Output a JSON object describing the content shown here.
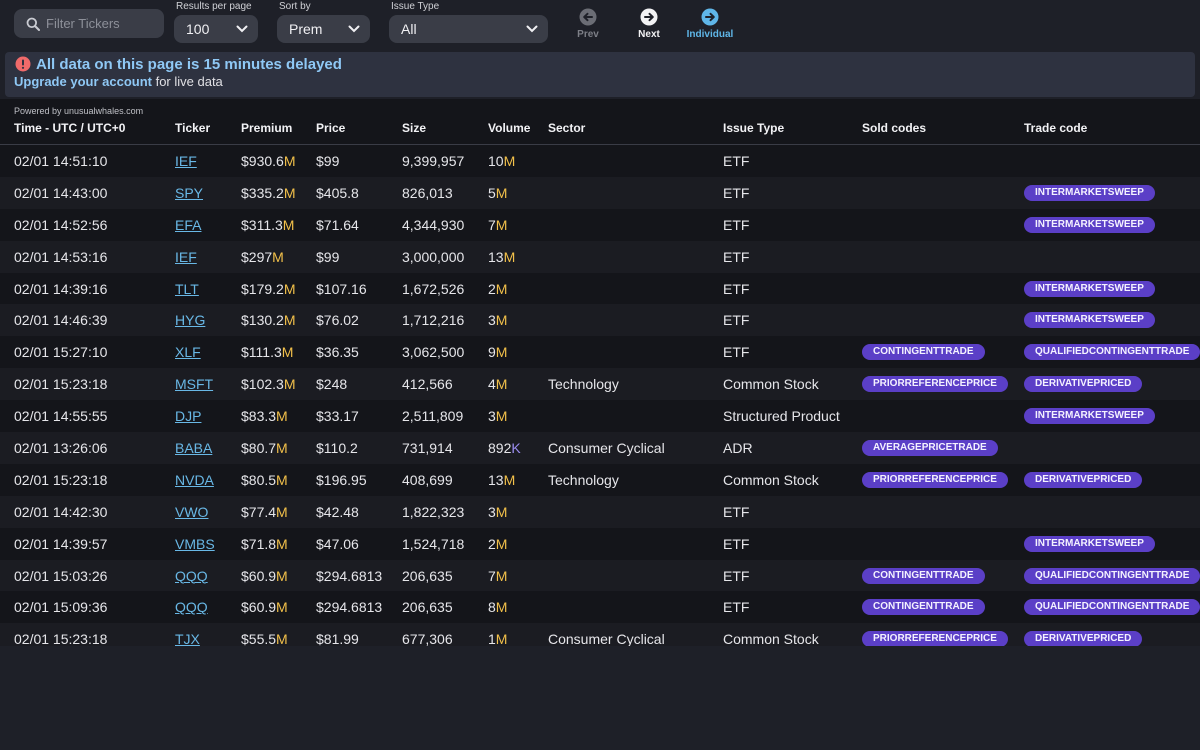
{
  "toolbar": {
    "search_placeholder": "Filter Tickers",
    "results_label": "Results per page",
    "results_value": "100",
    "sort_label": "Sort by",
    "sort_value": "Prem",
    "issue_label": "Issue Type",
    "issue_value": "All",
    "prev_label": "Prev",
    "next_label": "Next",
    "individual_label": "Individual"
  },
  "banner": {
    "message": "All data on this page is 15 minutes delayed",
    "link": "Upgrade your account",
    "suffix": " for live data"
  },
  "table": {
    "powered_by": "Powered by unusualwhales.com",
    "headers": {
      "time": "Time - UTC / UTC+0",
      "ticker": "Ticker",
      "premium": "Premium",
      "price": "Price",
      "size": "Size",
      "volume": "Volume",
      "sector": "Sector",
      "issue": "Issue Type",
      "sold": "Sold codes",
      "trade": "Trade code"
    },
    "rows": [
      {
        "time": "02/01 14:51:10",
        "ticker": "IEF",
        "premium": "$930.6",
        "premium_unit": "M",
        "price": "$99",
        "size": "9,399,957",
        "volume": "10",
        "volume_unit": "M",
        "sector": "",
        "issue": "ETF",
        "sold": "",
        "trade": ""
      },
      {
        "time": "02/01 14:43:00",
        "ticker": "SPY",
        "premium": "$335.2",
        "premium_unit": "M",
        "price": "$405.8",
        "size": "826,013",
        "volume": "5",
        "volume_unit": "M",
        "sector": "",
        "issue": "ETF",
        "sold": "",
        "trade": "INTERMARKETSWEEP"
      },
      {
        "time": "02/01 14:52:56",
        "ticker": "EFA",
        "premium": "$311.3",
        "premium_unit": "M",
        "price": "$71.64",
        "size": "4,344,930",
        "volume": "7",
        "volume_unit": "M",
        "sector": "",
        "issue": "ETF",
        "sold": "",
        "trade": "INTERMARKETSWEEP"
      },
      {
        "time": "02/01 14:53:16",
        "ticker": "IEF",
        "premium": "$297",
        "premium_unit": "M",
        "price": "$99",
        "size": "3,000,000",
        "volume": "13",
        "volume_unit": "M",
        "sector": "",
        "issue": "ETF",
        "sold": "",
        "trade": ""
      },
      {
        "time": "02/01 14:39:16",
        "ticker": "TLT",
        "premium": "$179.2",
        "premium_unit": "M",
        "price": "$107.16",
        "size": "1,672,526",
        "volume": "2",
        "volume_unit": "M",
        "sector": "",
        "issue": "ETF",
        "sold": "",
        "trade": "INTERMARKETSWEEP"
      },
      {
        "time": "02/01 14:46:39",
        "ticker": "HYG",
        "premium": "$130.2",
        "premium_unit": "M",
        "price": "$76.02",
        "size": "1,712,216",
        "volume": "3",
        "volume_unit": "M",
        "sector": "",
        "issue": "ETF",
        "sold": "",
        "trade": "INTERMARKETSWEEP"
      },
      {
        "time": "02/01 15:27:10",
        "ticker": "XLF",
        "premium": "$111.3",
        "premium_unit": "M",
        "price": "$36.35",
        "size": "3,062,500",
        "volume": "9",
        "volume_unit": "M",
        "sector": "",
        "issue": "ETF",
        "sold": "CONTINGENTTRADE",
        "trade": "QUALIFIEDCONTINGENTTRADE"
      },
      {
        "time": "02/01 15:23:18",
        "ticker": "MSFT",
        "premium": "$102.3",
        "premium_unit": "M",
        "price": "$248",
        "size": "412,566",
        "volume": "4",
        "volume_unit": "M",
        "sector": "Technology",
        "issue": "Common Stock",
        "sold": "PRIORREFERENCEPRICE",
        "trade": "DERIVATIVEPRICED"
      },
      {
        "time": "02/01 14:55:55",
        "ticker": "DJP",
        "premium": "$83.3",
        "premium_unit": "M",
        "price": "$33.17",
        "size": "2,511,809",
        "volume": "3",
        "volume_unit": "M",
        "sector": "",
        "issue": "Structured Product",
        "sold": "",
        "trade": "INTERMARKETSWEEP"
      },
      {
        "time": "02/01 13:26:06",
        "ticker": "BABA",
        "premium": "$80.7",
        "premium_unit": "M",
        "price": "$110.2",
        "size": "731,914",
        "volume": "892",
        "volume_unit": "K",
        "sector": "Consumer Cyclical",
        "issue": "ADR",
        "sold": "AVERAGEPRICETRADE",
        "trade": ""
      },
      {
        "time": "02/01 15:23:18",
        "ticker": "NVDA",
        "premium": "$80.5",
        "premium_unit": "M",
        "price": "$196.95",
        "size": "408,699",
        "volume": "13",
        "volume_unit": "M",
        "sector": "Technology",
        "issue": "Common Stock",
        "sold": "PRIORREFERENCEPRICE",
        "trade": "DERIVATIVEPRICED"
      },
      {
        "time": "02/01 14:42:30",
        "ticker": "VWO",
        "premium": "$77.4",
        "premium_unit": "M",
        "price": "$42.48",
        "size": "1,822,323",
        "volume": "3",
        "volume_unit": "M",
        "sector": "",
        "issue": "ETF",
        "sold": "",
        "trade": ""
      },
      {
        "time": "02/01 14:39:57",
        "ticker": "VMBS",
        "premium": "$71.8",
        "premium_unit": "M",
        "price": "$47.06",
        "size": "1,524,718",
        "volume": "2",
        "volume_unit": "M",
        "sector": "",
        "issue": "ETF",
        "sold": "",
        "trade": "INTERMARKETSWEEP"
      },
      {
        "time": "02/01 15:03:26",
        "ticker": "QQQ",
        "premium": "$60.9",
        "premium_unit": "M",
        "price": "$294.6813",
        "size": "206,635",
        "volume": "7",
        "volume_unit": "M",
        "sector": "",
        "issue": "ETF",
        "sold": "CONTINGENTTRADE",
        "trade": "QUALIFIEDCONTINGENTTRADE"
      },
      {
        "time": "02/01 15:09:36",
        "ticker": "QQQ",
        "premium": "$60.9",
        "premium_unit": "M",
        "price": "$294.6813",
        "size": "206,635",
        "volume": "8",
        "volume_unit": "M",
        "sector": "",
        "issue": "ETF",
        "sold": "CONTINGENTTRADE",
        "trade": "QUALIFIEDCONTINGENTTRADE"
      },
      {
        "time": "02/01 15:23:18",
        "ticker": "TJX",
        "premium": "$55.5",
        "premium_unit": "M",
        "price": "$81.99",
        "size": "677,306",
        "volume": "1",
        "volume_unit": "M",
        "sector": "Consumer Cyclical",
        "issue": "Common Stock",
        "sold": "PRIORREFERENCEPRICE",
        "trade": "DERIVATIVEPRICED"
      }
    ]
  },
  "colors": {
    "page_bg": "#1e2028",
    "table_bg": "#14151a",
    "accent_link": "#69b8e6",
    "unit_million": "#f2c04a",
    "unit_thousand": "#9a8cf0",
    "badge": "#5b3fc7",
    "warning": "#f06a6a"
  },
  "icons": {
    "search": "search-icon",
    "prev": "arrow-left-circle-icon",
    "next": "arrow-right-circle-icon",
    "individual": "arrow-right-circle-icon",
    "banner": "exclamation-circle-icon",
    "dropdown": "chevron-down-icon"
  }
}
